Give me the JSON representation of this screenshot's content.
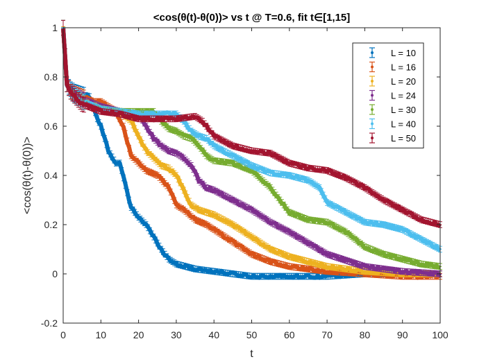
{
  "chart_data": {
    "type": "line",
    "title": "<cos(θ(t)-θ(0))> vs t @ T=0.6, fit t∈[1,15]",
    "xlabel": "t",
    "ylabel": "<cos(θ(t)-θ(0))>",
    "xlim": [
      0,
      100
    ],
    "ylim": [
      -0.2,
      1
    ],
    "xticks": [
      "0",
      "10",
      "20",
      "30",
      "40",
      "50",
      "60",
      "70",
      "80",
      "90",
      "100"
    ],
    "yticks": [
      "-0.2",
      "0",
      "0.2",
      "0.4",
      "0.6",
      "0.8",
      "1"
    ],
    "grid": false,
    "legend_position": "top-right",
    "error_bars": true,
    "series": [
      {
        "name": "L = 10",
        "color": "#0072BD",
        "x": [
          0,
          1,
          2,
          3,
          5,
          7,
          8,
          9,
          10,
          12,
          14,
          15,
          17,
          18,
          20,
          22,
          24,
          26,
          28,
          30,
          35,
          40,
          45,
          50,
          55,
          60,
          70,
          80,
          90,
          100
        ],
        "y": [
          1.0,
          0.77,
          0.75,
          0.74,
          0.73,
          0.72,
          0.68,
          0.63,
          0.6,
          0.5,
          0.45,
          0.45,
          0.33,
          0.27,
          0.23,
          0.2,
          0.15,
          0.1,
          0.06,
          0.04,
          0.02,
          0.01,
          0.0,
          -0.01,
          -0.01,
          -0.01,
          -0.01,
          0.0,
          0.0,
          0.0
        ]
      },
      {
        "name": "L = 16",
        "color": "#D95319",
        "x": [
          0,
          1,
          2,
          5,
          8,
          10,
          12,
          14,
          16,
          18,
          20,
          22,
          25,
          28,
          30,
          32,
          35,
          38,
          40,
          45,
          50,
          55,
          60,
          65,
          70,
          80,
          90,
          100
        ],
        "y": [
          1.0,
          0.77,
          0.74,
          0.72,
          0.7,
          0.7,
          0.68,
          0.66,
          0.6,
          0.48,
          0.45,
          0.42,
          0.4,
          0.35,
          0.28,
          0.26,
          0.22,
          0.2,
          0.18,
          0.13,
          0.08,
          0.05,
          0.03,
          0.02,
          0.01,
          0.0,
          -0.01,
          -0.01
        ]
      },
      {
        "name": "L = 20",
        "color": "#EDB120",
        "x": [
          0,
          1,
          2,
          5,
          10,
          15,
          18,
          20,
          22,
          24,
          26,
          28,
          30,
          32,
          34,
          36,
          38,
          40,
          45,
          50,
          55,
          60,
          70,
          80,
          90,
          100
        ],
        "y": [
          1.0,
          0.77,
          0.74,
          0.71,
          0.68,
          0.66,
          0.62,
          0.56,
          0.5,
          0.47,
          0.44,
          0.43,
          0.4,
          0.34,
          0.28,
          0.26,
          0.25,
          0.24,
          0.2,
          0.15,
          0.1,
          0.07,
          0.03,
          0.01,
          0.0,
          0.0
        ]
      },
      {
        "name": "L = 24",
        "color": "#7E2F8E",
        "x": [
          0,
          1,
          2,
          5,
          10,
          15,
          20,
          22,
          24,
          26,
          28,
          30,
          32,
          34,
          36,
          38,
          40,
          45,
          50,
          55,
          60,
          70,
          80,
          90,
          100
        ],
        "y": [
          1.0,
          0.77,
          0.74,
          0.71,
          0.68,
          0.66,
          0.65,
          0.6,
          0.55,
          0.52,
          0.5,
          0.49,
          0.47,
          0.44,
          0.38,
          0.35,
          0.34,
          0.3,
          0.26,
          0.21,
          0.17,
          0.08,
          0.03,
          0.01,
          0.0
        ]
      },
      {
        "name": "L = 30",
        "color": "#77AC30",
        "x": [
          0,
          1,
          2,
          5,
          10,
          15,
          20,
          24,
          26,
          28,
          30,
          32,
          34,
          36,
          38,
          40,
          45,
          50,
          55,
          60,
          65,
          70,
          75,
          80,
          85,
          90,
          95,
          100
        ],
        "y": [
          1.0,
          0.77,
          0.74,
          0.7,
          0.67,
          0.66,
          0.66,
          0.66,
          0.62,
          0.59,
          0.58,
          0.56,
          0.55,
          0.52,
          0.48,
          0.46,
          0.45,
          0.42,
          0.35,
          0.25,
          0.22,
          0.21,
          0.17,
          0.11,
          0.08,
          0.06,
          0.04,
          0.03
        ]
      },
      {
        "name": "L = 40",
        "color": "#4DBEEE",
        "x": [
          0,
          1,
          2,
          5,
          10,
          15,
          20,
          25,
          30,
          32,
          34,
          36,
          38,
          40,
          45,
          50,
          55,
          60,
          65,
          68,
          70,
          75,
          80,
          85,
          90,
          95,
          100
        ],
        "y": [
          1.0,
          0.77,
          0.74,
          0.7,
          0.67,
          0.66,
          0.65,
          0.65,
          0.65,
          0.62,
          0.58,
          0.56,
          0.55,
          0.52,
          0.48,
          0.44,
          0.41,
          0.4,
          0.38,
          0.35,
          0.29,
          0.25,
          0.21,
          0.2,
          0.18,
          0.14,
          0.1
        ]
      },
      {
        "name": "L = 50",
        "color": "#A2142F",
        "x": [
          0,
          1,
          2,
          5,
          10,
          15,
          20,
          25,
          30,
          35,
          37,
          40,
          45,
          50,
          55,
          60,
          65,
          70,
          75,
          80,
          85,
          90,
          95,
          100
        ],
        "y": [
          1.0,
          0.77,
          0.74,
          0.69,
          0.66,
          0.65,
          0.63,
          0.63,
          0.63,
          0.64,
          0.62,
          0.56,
          0.52,
          0.5,
          0.49,
          0.45,
          0.43,
          0.42,
          0.39,
          0.35,
          0.3,
          0.26,
          0.22,
          0.2
        ]
      }
    ]
  }
}
